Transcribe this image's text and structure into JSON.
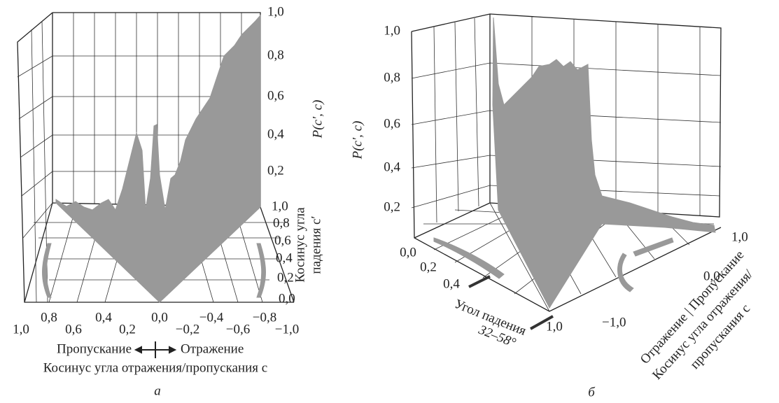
{
  "panel_a": {
    "z_label": "P(c′, c)",
    "z_ticks": [
      "1,0",
      "0,8",
      "0,6",
      "0,4",
      "0,2"
    ],
    "y_label": [
      "Косинус угла",
      "падения c′"
    ],
    "y_ticks": [
      "1,0",
      "0,8",
      "0,6",
      "0,4",
      "0,2",
      "0,0"
    ],
    "x_ticks": [
      "1,0",
      "0,8",
      "0,6",
      "0,4",
      "0,2",
      "0,0",
      "−0,2",
      "−0,4",
      "−0,6",
      "−0,8",
      "−1,0"
    ],
    "legend_left": "Пропускание",
    "legend_right": "Отражение",
    "x_label": "Косинус угла отражения/пропускания c",
    "caption": "а"
  },
  "panel_b": {
    "z_label": "P(c′, c)",
    "z_ticks": [
      "1,0",
      "0,8",
      "0,6",
      "0,4",
      "0,2"
    ],
    "angle_ticks": [
      "0,0",
      "0,2",
      "0,4",
      "1,0"
    ],
    "angle_label": [
      "Угол падения",
      "32–58°"
    ],
    "c_ticks": [
      "1,0",
      "0,0",
      "−1,0"
    ],
    "c_label": [
      "Отражение | Пропускание",
      "Косинус угла отражения/",
      "пропускания c"
    ],
    "caption": "б"
  }
}
